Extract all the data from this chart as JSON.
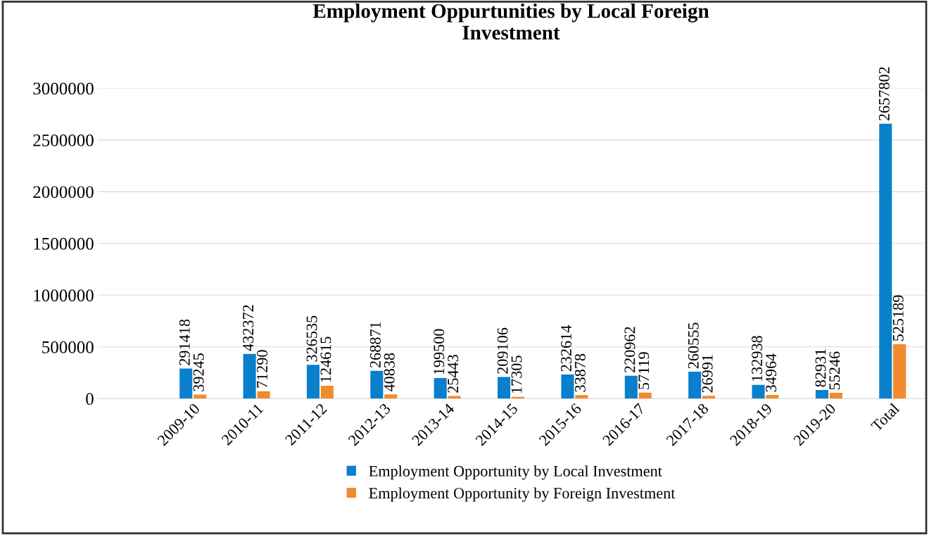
{
  "chart_data": {
    "type": "bar",
    "title": "Employment Oppurtunities by Local Foreign\nInvestment",
    "categories": [
      null,
      "2009-10",
      "2010-11",
      "2011-12",
      "2012-13",
      "2013-14",
      "2014-15",
      "2015-16",
      "2016-17",
      "2017-18",
      "2018-19",
      "2019-20",
      "Total"
    ],
    "series": [
      {
        "name": "Employment Opportunity by Local Investment",
        "color": "#0a7fcc",
        "values": [
          null,
          291418,
          432372,
          326535,
          268871,
          199500,
          209106,
          232614,
          220962,
          260555,
          132938,
          82931,
          2657802
        ]
      },
      {
        "name": "Employment Opportunity by Foreign Investment",
        "color": "#f28a2e",
        "values": [
          null,
          39245,
          71290,
          124615,
          40838,
          25443,
          17305,
          33878,
          57119,
          26991,
          34964,
          55246,
          525189
        ]
      }
    ],
    "ylim": [
      0,
      3000000
    ],
    "yticks": [
      0,
      500000,
      1000000,
      1500000,
      2000000,
      2500000,
      3000000
    ],
    "grid": "y",
    "legend": "bottom",
    "data_labels": true
  }
}
